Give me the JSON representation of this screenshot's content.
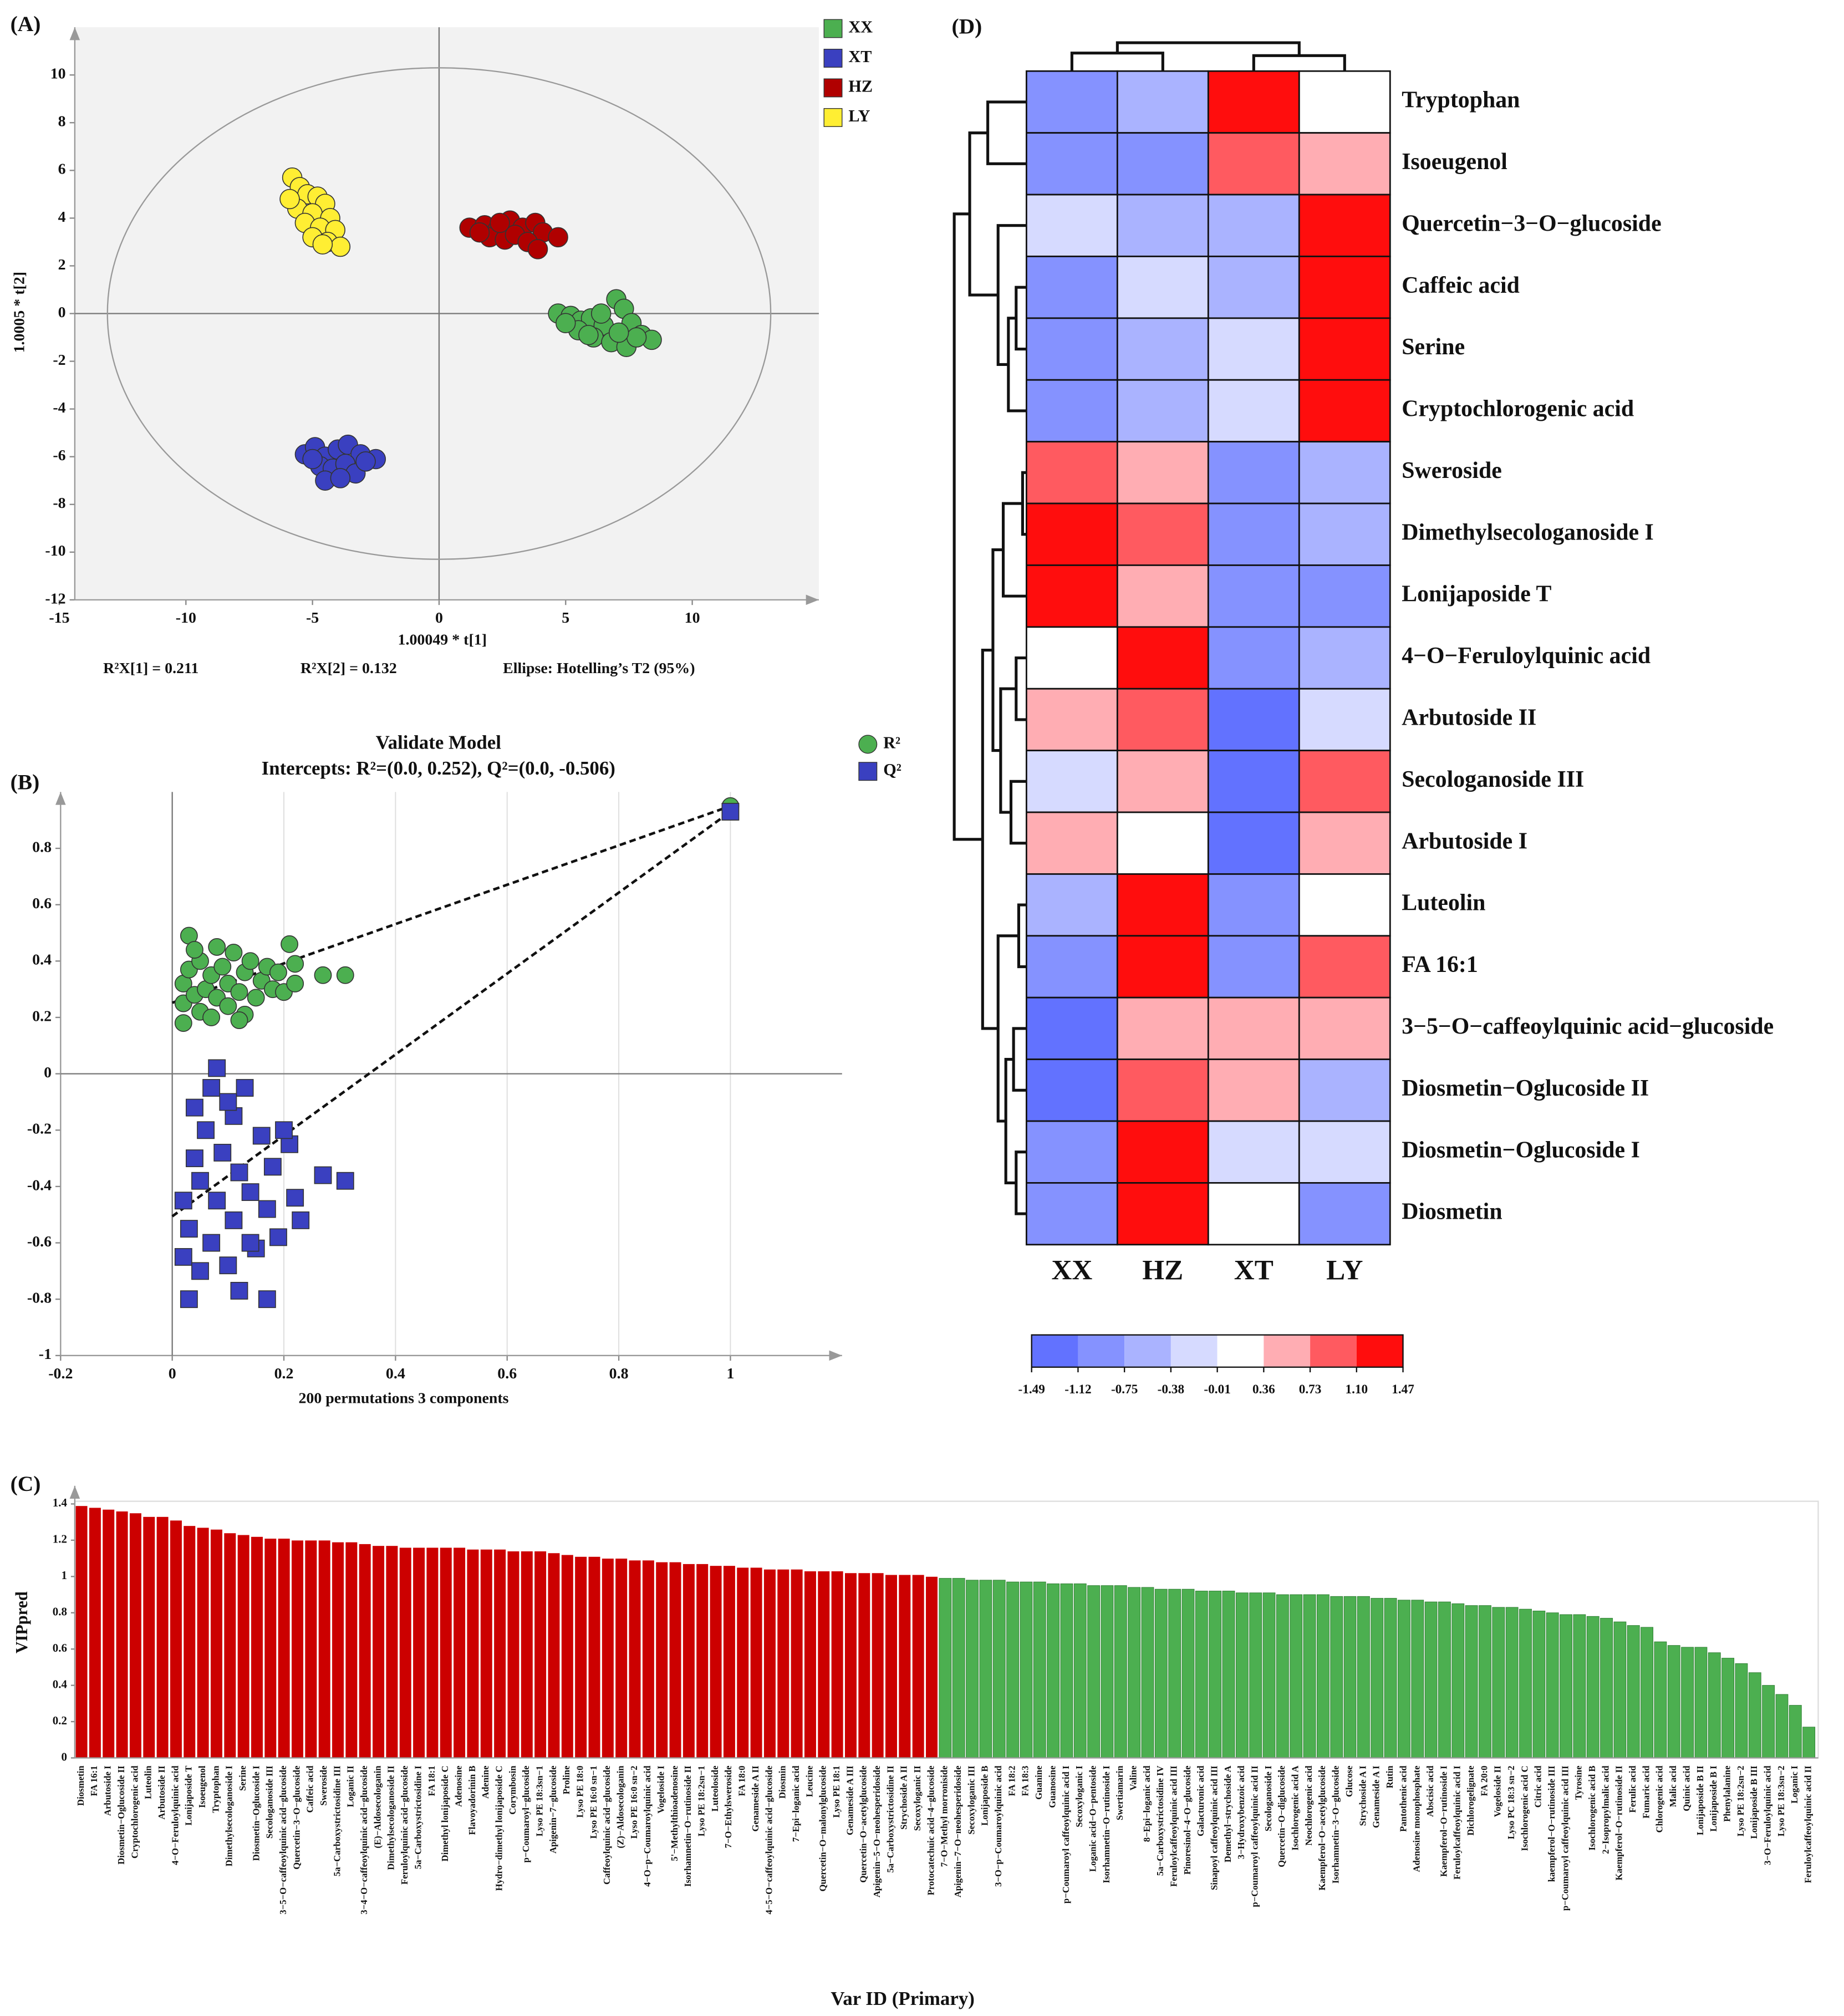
{
  "chart_data": [
    {
      "type": "scatter",
      "panel": "(A)",
      "xlabel": "1.00049 * t[1]",
      "ylabel": "1.0005 * t[2]",
      "notes": [
        "R²X[1] = 0.211",
        "R²X[2] = 0.132",
        "Ellipse: Hotelling’s T2 (95%)"
      ],
      "xlim": [
        -15,
        15
      ],
      "ylim": [
        -12,
        12
      ],
      "xticks": [
        -15,
        -10,
        -5,
        0,
        5,
        10
      ],
      "yticks": [
        -12,
        -10,
        -8,
        -6,
        -4,
        -2,
        0,
        2,
        4,
        6,
        8,
        10
      ],
      "zero_lines": true,
      "ellipse_radii": [
        13.1,
        10.3
      ],
      "legend": "outside right",
      "series": [
        {
          "name": "XX",
          "color": "#4caf50",
          "marker": "circle",
          "x": [
            4.7,
            5.2,
            5.6,
            6.0,
            6.5,
            7.0,
            7.3,
            7.6,
            8.0,
            8.4,
            5.5,
            6.1,
            6.8,
            7.4,
            5.9,
            7.8,
            6.4,
            5.0,
            7.1
          ],
          "values": [
            0,
            -0.1,
            -0.3,
            -0.2,
            -0.5,
            0.6,
            0.2,
            -0.4,
            -0.9,
            -1.1,
            -0.7,
            -1.0,
            -1.2,
            -1.4,
            -0.9,
            -1.0,
            0.0,
            -0.4,
            -0.8
          ]
        },
        {
          "name": "XT",
          "color": "#3a40c0",
          "marker": "circle",
          "x": [
            -5.3,
            -4.9,
            -4.5,
            -4.0,
            -3.6,
            -3.1,
            -2.5,
            -4.7,
            -4.2,
            -3.7,
            -3.3,
            -4.5,
            -2.9,
            -5.0,
            -3.9
          ],
          "values": [
            -5.9,
            -5.6,
            -6.0,
            -5.7,
            -5.5,
            -5.9,
            -6.1,
            -6.4,
            -6.5,
            -6.3,
            -6.7,
            -7.0,
            -6.2,
            -6.1,
            -6.9
          ]
        },
        {
          "name": "HZ",
          "color": "#b00000",
          "marker": "circle",
          "x": [
            1.2,
            1.8,
            2.3,
            2.8,
            3.3,
            3.8,
            4.1,
            4.7,
            2.0,
            2.6,
            3.0,
            3.5,
            3.9,
            2.4,
            1.6
          ],
          "values": [
            3.6,
            3.7,
            3.5,
            3.9,
            3.6,
            3.8,
            3.4,
            3.2,
            3.2,
            3.1,
            3.3,
            3.0,
            2.7,
            3.8,
            3.4
          ]
        },
        {
          "name": "LY",
          "color": "#ffee33",
          "marker": "circle",
          "x": [
            -5.8,
            -5.5,
            -5.2,
            -4.8,
            -4.5,
            -5.6,
            -5.0,
            -4.3,
            -5.3,
            -4.7,
            -4.1,
            -5.0,
            -4.4,
            -3.9,
            -4.6,
            -5.9
          ],
          "values": [
            5.7,
            5.3,
            5.0,
            4.9,
            4.6,
            4.4,
            4.2,
            4.0,
            3.8,
            3.6,
            3.5,
            3.2,
            3.0,
            2.8,
            2.9,
            4.8
          ]
        }
      ]
    },
    {
      "type": "scatter",
      "panel": "(B)",
      "title": "Validate Model",
      "subtitle": "Intercepts: R²=(0.0, 0.252), Q²=(0.0, -0.506)",
      "xlabel": "200 permutations 3 components",
      "xlim": [
        -0.2,
        1.2
      ],
      "ylim": [
        -1,
        1
      ],
      "xticks": [
        -0.2,
        0,
        0.2,
        0.4,
        0.6,
        0.8,
        1
      ],
      "yticks": [
        -1,
        -0.8,
        -0.6,
        -0.4,
        -0.2,
        0,
        0.2,
        0.4,
        0.6,
        0.8
      ],
      "zero_lines": true,
      "grid": "x",
      "legend": "top right",
      "series": [
        {
          "name": "R²",
          "color": "#4caf50",
          "marker": "circle",
          "intercept": 0.252,
          "x": [
            0.02,
            0.02,
            0.02,
            0.03,
            0.03,
            0.04,
            0.05,
            0.05,
            0.06,
            0.07,
            0.07,
            0.08,
            0.09,
            0.1,
            0.1,
            0.11,
            0.12,
            0.13,
            0.13,
            0.14,
            0.15,
            0.16,
            0.17,
            0.18,
            0.19,
            0.2,
            0.21,
            0.22,
            0.22,
            0.27,
            0.31,
            0.04,
            0.08,
            0.12,
            1
          ],
          "values": [
            0.18,
            0.25,
            0.32,
            0.37,
            0.49,
            0.28,
            0.22,
            0.4,
            0.3,
            0.35,
            0.2,
            0.27,
            0.38,
            0.24,
            0.32,
            0.43,
            0.29,
            0.36,
            0.21,
            0.4,
            0.27,
            0.33,
            0.38,
            0.3,
            0.36,
            0.29,
            0.46,
            0.39,
            0.32,
            0.35,
            0.35,
            0.44,
            0.45,
            0.19,
            0.95
          ]
        },
        {
          "name": "Q²",
          "color": "#3a40c0",
          "marker": "square",
          "intercept": -0.506,
          "x": [
            0.02,
            0.02,
            0.03,
            0.03,
            0.04,
            0.04,
            0.05,
            0.05,
            0.06,
            0.07,
            0.07,
            0.08,
            0.08,
            0.09,
            0.1,
            0.11,
            0.11,
            0.12,
            0.12,
            0.13,
            0.14,
            0.15,
            0.16,
            0.17,
            0.17,
            0.18,
            0.19,
            0.21,
            0.22,
            0.23,
            0.27,
            0.31,
            0.1,
            0.14,
            0.2,
            1
          ],
          "values": [
            -0.45,
            -0.65,
            -0.8,
            -0.55,
            -0.3,
            -0.12,
            -0.7,
            -0.38,
            -0.2,
            -0.05,
            -0.6,
            0.02,
            -0.45,
            -0.28,
            -0.68,
            -0.15,
            -0.52,
            -0.77,
            -0.35,
            -0.05,
            -0.42,
            -0.62,
            -0.22,
            -0.8,
            -0.48,
            -0.33,
            -0.58,
            -0.25,
            -0.44,
            -0.52,
            -0.36,
            -0.38,
            -0.1,
            -0.6,
            -0.2,
            0.93
          ]
        }
      ]
    },
    {
      "type": "bar",
      "panel": "(C)",
      "xlabel": "Var ID (Primary)",
      "ylabel": "VIPpred",
      "ylim": [
        0,
        1.5
      ],
      "yticks": [
        0,
        0.2,
        0.4,
        0.6,
        0.8,
        1,
        1.2,
        1.4
      ],
      "categories": [
        "Diosmetin",
        "FA 16:1",
        "Arbutoside I",
        "Diosmetin−Oglucoside II",
        "Cryptochlorogenic acid",
        "Luteolin",
        "Arbutoside II",
        "4−O−Feruloylquinic acid",
        "Lonijaposide T",
        "Isoeugenol",
        "Tryptophan",
        "Dimethylsecologanoside I",
        "Serine",
        "Diosmetin−Oglucoside I",
        "Secologanoside III",
        "3−5−O−caffeoylquinic acid−glucoside",
        "Quercetin−3−O−glucoside",
        "Caffeic acid",
        "Sweroside",
        "5a−Carboxystrictosidine III",
        "Loganic II",
        "3−4−O−caffeoylquinic acid−glucoside",
        "(E)−Aldosecologanin",
        "Dimethylsecologanoside II",
        "Feruloylquinic acid−glucoside",
        "5a−Carboxystrictosidine I",
        "FA 18:1",
        "Dimethyl lonijaposide C",
        "Adenosine",
        "Flavoyadorinin B",
        "Adenine",
        "Hydro−dimethyl lonijaposide C",
        "Corymbosin",
        "p−Coumaroyl−glucoside",
        "Lyso PE 18:3sn−1",
        "Apigenin−7−glucoside",
        "Proline",
        "Lyso PE 18:0",
        "Lyso PE 16:0 sn−1",
        "Caffeoylquinic acid−glucoside",
        "(Z)−Aldosecologanin",
        "Lyso PE 16:0 sn−2",
        "4−O−p−Coumaroylquinic acid",
        "Vogeloside I",
        "5'−Methylthioadenosine",
        "Isorhamnetin−O−rutinoside II",
        "Lyso PE 18:2sn−1",
        "Luteoloside",
        "7−O−Ethylsweroside",
        "FA 18:0",
        "Genameside A II",
        "4−5−O−caffeoylquinic acid−glucoside",
        "Diosmin",
        "7−Epi−loganic acid",
        "Leucine",
        "Quercetin−O−malonylglucoside",
        "Lyso PE 18:1",
        "Genameside A III",
        "Quercetin−O−acetylglucoside",
        "Apigenin−5−O−neohesperidoside",
        "5a−Carboxystrictosidine II",
        "Strychoside A II",
        "Secoxyloganic II",
        "Protocatechuic acid−4−glucoside",
        "7−O−Methyl morroniside",
        "Apigenin−7−O−neohesperidoside",
        "Secoxyloganic III",
        "Lonijaposide B",
        "3−O−p−Coumaroylquinic acid",
        "FA 18:2",
        "FA 18:3",
        "Guanine",
        "Guanosine",
        "p−Coumaroyl caffeoylquinic acid I",
        "Secoxyloganic I",
        "Loganic acid−O−pentoside",
        "Isorhamnetin−O−rutinoside I",
        "Swertiamarin",
        "Valine",
        "8−Epi−loganic acid",
        "5a−Carboxystrictosidine IV",
        "Feruloylcaffeoylquinic acid III",
        "Pinoresinol−4−O−glucoside",
        "Galacturonic acid",
        "Sinapoyl caffeoylquinic acid III",
        "Demethyl−strychoside A",
        "3−Hydroxybenzoic acid",
        "p−Coumaroyl caffeoylquinic acid II",
        "Secologanoside I",
        "Quercetin−O−diglucoside",
        "Isochlorogenic acid A",
        "Neochlorogenic acid",
        "Kaempferol−O−acetylglucoside",
        "Isorhamnetin−3−O−glucoside",
        "Glucose",
        "Strychoside A I",
        "Genameside A I",
        "Rutin",
        "Pantothenic acid",
        "Adenosine monophosphate",
        "Abscisic acid",
        "Kaempferol−O−rutinoside I",
        "Feruloylcaffeoylquinic acid I",
        "Dichlorogelignate",
        "FA 20:0",
        "Vogeloside II",
        "Lyso PC 18:3 sn−2",
        "Isochlorogenic acid C",
        "Citric acid",
        "kaempferol−O−rutinoside III",
        "p−Coumaroyl caffeoylquinic acid III",
        "Tyrosine",
        "Isochlorogenic acid B",
        "2−Isopropylmalic acid",
        "Kaempferol−O−rutinoside II",
        "Ferulic acid",
        "Fumaric acid",
        "Chlorogenic acid",
        "Malic acid",
        "Quinic acid",
        "Lonijaposide B II",
        "Lonijaposide B I",
        "Phenylalanine",
        "Lyso PE 18:2sn−2",
        "Lonijaposide B III",
        "3−O−Feruloylquinic acid",
        "Lyso PE 18:3sn−2",
        "Loganic I",
        "Feruloylcaffeoylquinic acid II"
      ],
      "values": [
        1.39,
        1.38,
        1.37,
        1.36,
        1.35,
        1.33,
        1.33,
        1.31,
        1.28,
        1.27,
        1.26,
        1.24,
        1.23,
        1.22,
        1.21,
        1.21,
        1.2,
        1.2,
        1.2,
        1.19,
        1.19,
        1.18,
        1.17,
        1.17,
        1.16,
        1.16,
        1.16,
        1.16,
        1.16,
        1.15,
        1.15,
        1.15,
        1.14,
        1.14,
        1.14,
        1.13,
        1.12,
        1.11,
        1.11,
        1.1,
        1.1,
        1.09,
        1.09,
        1.08,
        1.08,
        1.07,
        1.07,
        1.06,
        1.06,
        1.05,
        1.05,
        1.04,
        1.04,
        1.04,
        1.03,
        1.03,
        1.03,
        1.02,
        1.02,
        1.02,
        1.01,
        1.01,
        1.01,
        1.0,
        0.99,
        0.99,
        0.98,
        0.98,
        0.98,
        0.97,
        0.97,
        0.97,
        0.96,
        0.96,
        0.96,
        0.95,
        0.95,
        0.95,
        0.94,
        0.94,
        0.93,
        0.93,
        0.93,
        0.92,
        0.92,
        0.92,
        0.91,
        0.91,
        0.91,
        0.9,
        0.9,
        0.9,
        0.9,
        0.89,
        0.89,
        0.89,
        0.88,
        0.88,
        0.87,
        0.87,
        0.86,
        0.86,
        0.85,
        0.84,
        0.84,
        0.83,
        0.83,
        0.82,
        0.81,
        0.8,
        0.79,
        0.79,
        0.78,
        0.77,
        0.75,
        0.73,
        0.72,
        0.64,
        0.62,
        0.61,
        0.61,
        0.58,
        0.55,
        0.52,
        0.47,
        0.4,
        0.35,
        0.29,
        0.17
      ],
      "bar_colors": [
        "#cc0000",
        "#cc0000",
        "#cc0000",
        "#cc0000",
        "#cc0000",
        "#cc0000",
        "#cc0000",
        "#cc0000",
        "#cc0000",
        "#cc0000",
        "#cc0000",
        "#cc0000",
        "#cc0000",
        "#cc0000",
        "#cc0000",
        "#cc0000",
        "#cc0000",
        "#cc0000",
        "#cc0000",
        "#cc0000",
        "#cc0000",
        "#cc0000",
        "#cc0000",
        "#cc0000",
        "#cc0000",
        "#cc0000",
        "#cc0000",
        "#cc0000",
        "#cc0000",
        "#cc0000",
        "#cc0000",
        "#cc0000",
        "#cc0000",
        "#cc0000",
        "#cc0000",
        "#cc0000",
        "#cc0000",
        "#cc0000",
        "#cc0000",
        "#cc0000",
        "#cc0000",
        "#cc0000",
        "#cc0000",
        "#cc0000",
        "#cc0000",
        "#cc0000",
        "#cc0000",
        "#cc0000",
        "#cc0000",
        "#cc0000",
        "#cc0000",
        "#cc0000",
        "#cc0000",
        "#cc0000",
        "#cc0000",
        "#cc0000",
        "#cc0000",
        "#cc0000",
        "#cc0000",
        "#cc0000",
        "#cc0000",
        "#cc0000",
        "#cc0000",
        "#cc0000",
        "#4caf50",
        "#4caf50",
        "#4caf50",
        "#4caf50",
        "#4caf50",
        "#4caf50",
        "#4caf50",
        "#4caf50",
        "#4caf50",
        "#4caf50",
        "#4caf50",
        "#4caf50",
        "#4caf50",
        "#4caf50",
        "#4caf50",
        "#4caf50",
        "#4caf50",
        "#4caf50",
        "#4caf50",
        "#4caf50",
        "#4caf50",
        "#4caf50",
        "#4caf50",
        "#4caf50",
        "#4caf50",
        "#4caf50",
        "#4caf50",
        "#4caf50",
        "#4caf50",
        "#4caf50",
        "#4caf50",
        "#4caf50",
        "#4caf50",
        "#4caf50",
        "#4caf50",
        "#4caf50",
        "#4caf50",
        "#4caf50",
        "#4caf50",
        "#4caf50",
        "#4caf50",
        "#4caf50",
        "#4caf50",
        "#4caf50",
        "#4caf50",
        "#4caf50",
        "#4caf50",
        "#4caf50",
        "#4caf50",
        "#4caf50",
        "#4caf50",
        "#4caf50",
        "#4caf50",
        "#4caf50",
        "#4caf50",
        "#4caf50",
        "#4caf50",
        "#4caf50",
        "#4caf50",
        "#4caf50",
        "#4caf50",
        "#4caf50",
        "#4caf50",
        "#4caf50",
        "#4caf50"
      ]
    },
    {
      "type": "heatmap",
      "panel": "(D)",
      "columns": [
        "XX",
        "HZ",
        "XT",
        "LY"
      ],
      "rows": [
        "Tryptophan",
        "Isoeugenol",
        "Quercetin−3−O−glucoside",
        "Caffeic acid",
        "Serine",
        "Cryptochlorogenic acid",
        "Sweroside",
        "Dimethylsecologanoside I",
        "Lonijaposide T",
        "4−O−Feruloylquinic acid",
        "Arbutoside II",
        "Secologanoside III",
        "Arbutoside I",
        "Luteolin",
        "FA 16:1",
        "3−5−O−caffeoylquinic acid−glucoside",
        "Diosmetin−Oglucoside II",
        "Diosmetin−Oglucoside I",
        "Diosmetin"
      ],
      "values": [
        [
          -1.0,
          -0.6,
          1.47,
          0.0
        ],
        [
          -1.0,
          -1.0,
          1.1,
          0.5
        ],
        [
          -0.3,
          -0.7,
          -0.7,
          1.47
        ],
        [
          -1.0,
          -0.3,
          -0.6,
          1.47
        ],
        [
          -1.0,
          -0.4,
          -0.3,
          1.47
        ],
        [
          -1.0,
          -0.7,
          -0.3,
          1.47
        ],
        [
          1.1,
          0.5,
          -1.0,
          -0.6
        ],
        [
          1.2,
          1.1,
          -1.0,
          -0.7
        ],
        [
          1.2,
          0.5,
          -1.0,
          -1.0
        ],
        [
          0.0,
          1.47,
          -1.0,
          -0.7
        ],
        [
          0.6,
          1.1,
          -1.4,
          -0.3
        ],
        [
          -0.3,
          0.5,
          -1.3,
          1.1
        ],
        [
          0.5,
          0.0,
          -1.3,
          0.5
        ],
        [
          -0.7,
          1.47,
          -1.0,
          0.0
        ],
        [
          -1.0,
          1.2,
          -1.0,
          1.1
        ],
        [
          -1.4,
          0.6,
          0.6,
          0.7
        ],
        [
          -1.4,
          1.1,
          0.5,
          -0.7
        ],
        [
          -1.0,
          1.47,
          -0.3,
          -0.3
        ],
        [
          -1.0,
          1.47,
          0.0,
          -0.8
        ]
      ],
      "colorticks": [
        -1.49,
        -1.12,
        -0.75,
        -0.38,
        -0.01,
        0.36,
        0.73,
        {
          "value": 1.1,
          "label": "1.10"
        },
        1.47
      ],
      "colors": [
        "#6272ff",
        "#8592ff",
        "#aab3ff",
        "#d6daff",
        "#ffffff",
        "#ffadb3",
        "#ff5a60",
        "#ff0d0d"
      ]
    }
  ]
}
